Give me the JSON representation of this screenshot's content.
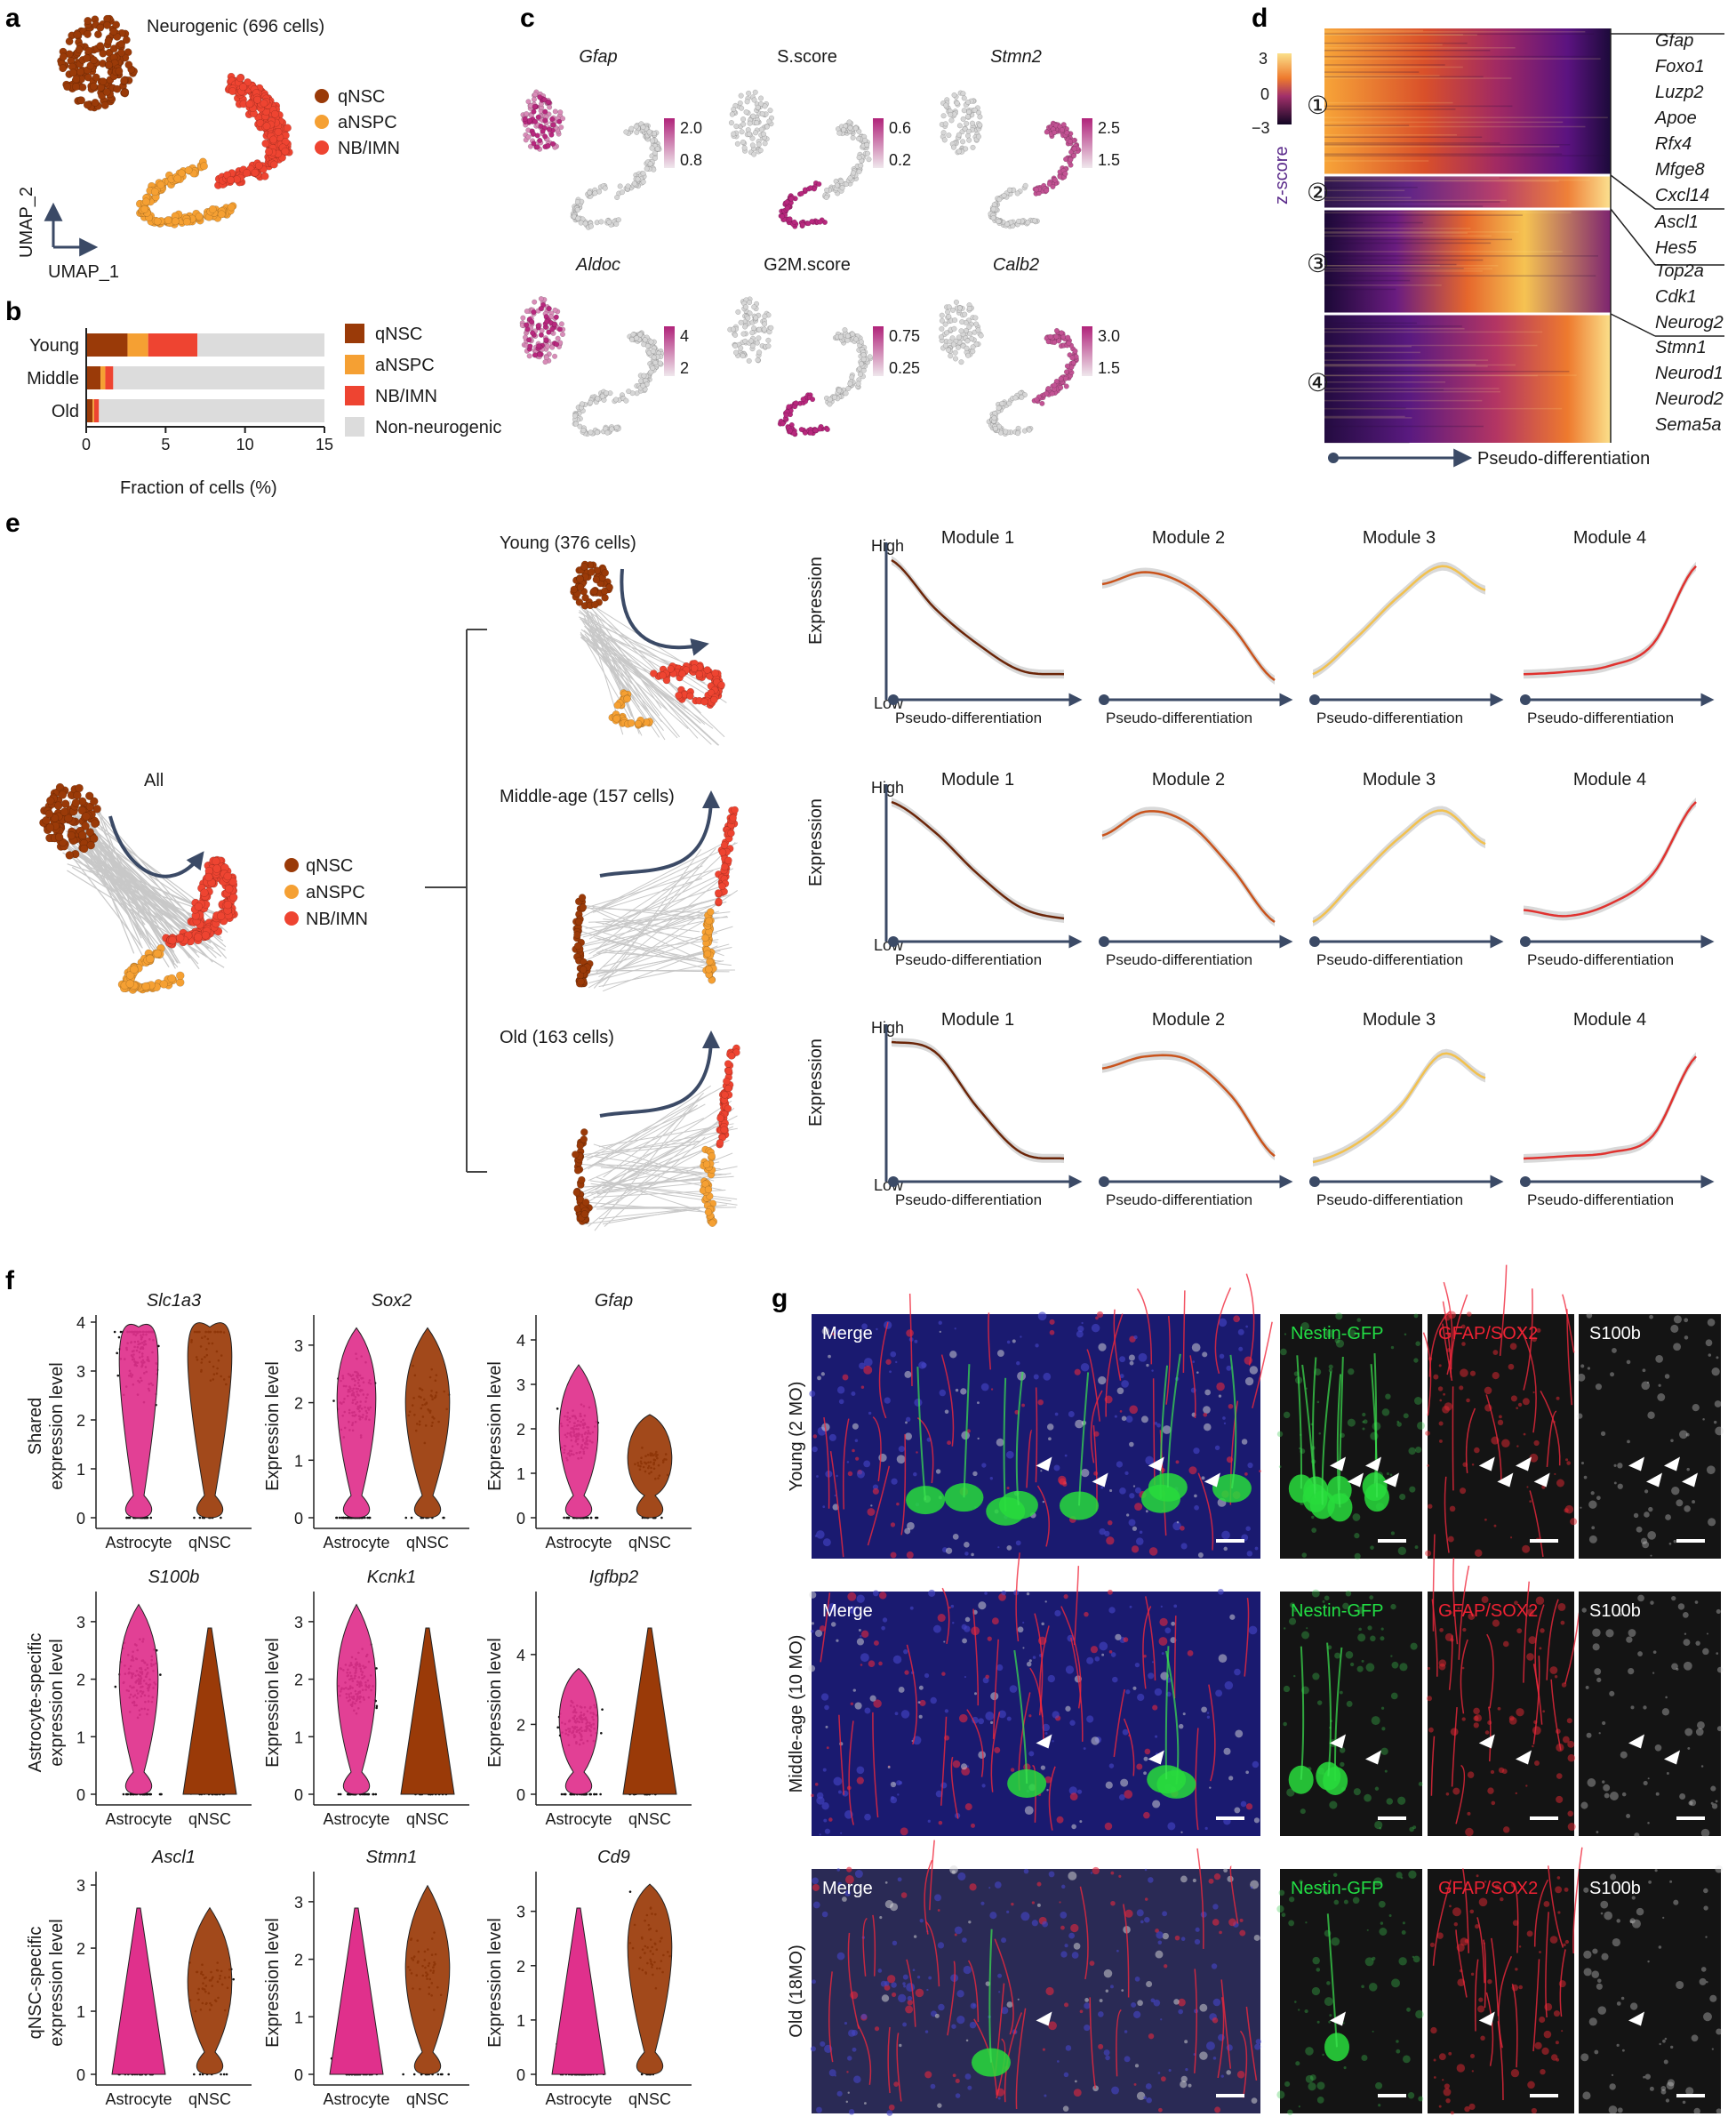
{
  "panels": {
    "a": {
      "label": "a",
      "title": "Neurogenic (696 cells)",
      "axis_x": "UMAP_1",
      "axis_y": "UMAP_2",
      "legend": [
        "qNSC",
        "aNSPC",
        "NB/IMN"
      ]
    },
    "b": {
      "label": "b",
      "xlabel": "Fraction of cells (%)",
      "ticks": [
        "0",
        "5",
        "10",
        "15"
      ],
      "legend": [
        "qNSC",
        "aNSPC",
        "NB/IMN",
        "Non-neurogenic"
      ]
    },
    "c": {
      "label": "c",
      "maps": [
        {
          "title": "Gfap",
          "italic": true,
          "scale_hi": "2.0",
          "scale_lo": "0.8"
        },
        {
          "title": "S.score",
          "italic": false,
          "scale_hi": "0.6",
          "scale_lo": "0.2"
        },
        {
          "title": "Stmn2",
          "italic": true,
          "scale_hi": "2.5",
          "scale_lo": "1.5"
        },
        {
          "title": "Aldoc",
          "italic": true,
          "scale_hi": "4",
          "scale_lo": "2"
        },
        {
          "title": "G2M.score",
          "italic": false,
          "scale_hi": "0.75",
          "scale_lo": "0.25"
        },
        {
          "title": "Calb2",
          "italic": true,
          "scale_hi": "3.0",
          "scale_lo": "1.5"
        }
      ]
    },
    "d": {
      "label": "d",
      "scale_title": "z-score",
      "scale_ticks": [
        "3",
        "0",
        "−3"
      ],
      "clusters": [
        "①",
        "②",
        "③",
        "④"
      ],
      "genes": [
        "Gfap",
        "Foxo1",
        "Luzp2",
        "Apoe",
        "Rfx4",
        "Mfge8",
        "Cxcl14",
        "Ascl1",
        "Hes5",
        "Top2a",
        "Cdk1",
        "Neurog2",
        "Stmn1",
        "Neurod1",
        "Neurod2",
        "Sema5a"
      ],
      "axis": "Pseudo-differentiation"
    },
    "e": {
      "label": "e",
      "all_title": "All",
      "legend": [
        "qNSC",
        "aNSPC",
        "NB/IMN"
      ],
      "rows": [
        {
          "title": "Young (376 cells)"
        },
        {
          "title": "Middle-age (157 cells)"
        },
        {
          "title": "Old (163 cells)"
        }
      ],
      "modules": [
        "Module 1",
        "Module 2",
        "Module 3",
        "Module 4"
      ],
      "ylabel": "Expression",
      "high": "High",
      "low": "Low",
      "xlabel": "Pseudo-differentiation"
    },
    "f": {
      "label": "f",
      "genes": [
        "Slc1a3",
        "Sox2",
        "Gfap",
        "S100b",
        "Kcnk1",
        "Igfbp2",
        "Ascl1",
        "Stmn1",
        "Cd9"
      ],
      "row_ylabels": [
        [
          "Shared",
          "expression level"
        ],
        [
          "Astrocyte-specific",
          "expression level"
        ],
        [
          "qNSC-specific",
          "expression level"
        ]
      ],
      "ylabel": "Expression level",
      "groups": [
        "Astrocyte",
        "qNSC"
      ]
    },
    "g": {
      "label": "g",
      "rows": [
        "Young (2 MO)",
        "Middle-age (10 MO)",
        "Old (18MO)"
      ],
      "channels": [
        "Merge",
        "Nestin-GFP",
        "GFAP/SOX2",
        "S100b"
      ]
    }
  },
  "colors": {
    "qNSC": "#9a3a08",
    "aNSPC": "#f5a033",
    "NB_IMN": "#ee4431",
    "non_neurogenic": "#dcdcdc",
    "astro_violin": "#e0308c",
    "module1": "#6b2508",
    "module2": "#c9531c",
    "module3": "#f2c14e",
    "module4": "#e0322f"
  },
  "chart_data": [
    {
      "type": "bar",
      "panel": "b",
      "orientation": "horizontal",
      "stacked": true,
      "categories": [
        "Young",
        "Middle",
        "Old"
      ],
      "series": [
        {
          "name": "qNSC",
          "values": [
            2.6,
            0.9,
            0.4
          ]
        },
        {
          "name": "aNSPC",
          "values": [
            1.3,
            0.3,
            0.1
          ]
        },
        {
          "name": "NB/IMN",
          "values": [
            3.1,
            0.5,
            0.3
          ]
        },
        {
          "name": "Non-neurogenic",
          "values": [
            8.0,
            13.3,
            14.2
          ]
        }
      ],
      "xlabel": "Fraction of cells (%)",
      "xlim": [
        0,
        15
      ]
    },
    {
      "type": "line",
      "panel": "e",
      "xlabel": "Pseudo-differentiation",
      "ylabel": "Expression",
      "x": [
        0,
        0.25,
        0.5,
        0.75,
        1.0
      ],
      "rows": [
        {
          "group": "Young (376 cells)",
          "series": [
            {
              "name": "Module 1",
              "values": [
                1.0,
                0.6,
                0.3,
                0.08,
                0.05
              ]
            },
            {
              "name": "Module 2",
              "values": [
                0.8,
                0.9,
                0.78,
                0.45,
                0.0
              ]
            },
            {
              "name": "Module 3",
              "values": [
                0.05,
                0.35,
                0.7,
                0.95,
                0.75
              ]
            },
            {
              "name": "Module 4",
              "values": [
                0.05,
                0.07,
                0.12,
                0.3,
                0.95
              ]
            }
          ]
        },
        {
          "group": "Middle-age (157 cells)",
          "series": [
            {
              "name": "Module 1",
              "values": [
                1.0,
                0.75,
                0.4,
                0.12,
                0.03
              ]
            },
            {
              "name": "Module 2",
              "values": [
                0.72,
                0.92,
                0.82,
                0.45,
                0.0
              ]
            },
            {
              "name": "Module 3",
              "values": [
                0.0,
                0.35,
                0.7,
                0.93,
                0.65
              ]
            },
            {
              "name": "Module 4",
              "values": [
                0.1,
                0.05,
                0.15,
                0.4,
                1.0
              ]
            }
          ]
        },
        {
          "group": "Old (163 cells)",
          "series": [
            {
              "name": "Module 1",
              "values": [
                1.0,
                0.92,
                0.45,
                0.08,
                0.03
              ]
            },
            {
              "name": "Module 2",
              "values": [
                0.78,
                0.88,
                0.85,
                0.55,
                0.05
              ]
            },
            {
              "name": "Module 3",
              "values": [
                0.0,
                0.15,
                0.45,
                0.9,
                0.7
              ]
            },
            {
              "name": "Module 4",
              "values": [
                0.03,
                0.05,
                0.08,
                0.22,
                0.88
              ]
            }
          ]
        }
      ]
    },
    {
      "type": "violin",
      "panel": "f",
      "groups": [
        "Astrocyte",
        "qNSC"
      ],
      "genes": [
        {
          "gene": "Slc1a3",
          "ylim": [
            0,
            4
          ],
          "ticks": [
            0,
            1,
            2,
            3,
            4
          ],
          "medians": [
            3.5,
            3.6
          ]
        },
        {
          "gene": "Sox2",
          "ylim": [
            0,
            3.4
          ],
          "ticks": [
            0,
            1,
            2,
            3
          ],
          "medians": [
            2.1,
            2.0
          ]
        },
        {
          "gene": "Gfap",
          "ylim": [
            0,
            4.4
          ],
          "ticks": [
            0,
            1,
            2,
            3,
            4
          ],
          "medians": [
            1.9,
            1.2
          ]
        },
        {
          "gene": "S100b",
          "ylim": [
            0,
            3.4
          ],
          "ticks": [
            0,
            1,
            2,
            3
          ],
          "medians": [
            2.0,
            0.0
          ]
        },
        {
          "gene": "Kcnk1",
          "ylim": [
            0,
            3.4
          ],
          "ticks": [
            0,
            1,
            2,
            3
          ],
          "medians": [
            1.9,
            0.0
          ]
        },
        {
          "gene": "Igfbp2",
          "ylim": [
            0,
            5.6
          ],
          "ticks": [
            0,
            2,
            4
          ],
          "medians": [
            2.0,
            0.0
          ]
        },
        {
          "gene": "Ascl1",
          "ylim": [
            0,
            3.1
          ],
          "ticks": [
            0,
            1,
            2,
            3
          ],
          "medians": [
            0.0,
            1.4
          ]
        },
        {
          "gene": "Stmn1",
          "ylim": [
            0,
            3.4
          ],
          "ticks": [
            0,
            1,
            2,
            3
          ],
          "medians": [
            0.0,
            1.8
          ]
        },
        {
          "gene": "Cd9",
          "ylim": [
            0,
            3.6
          ],
          "ticks": [
            0,
            1,
            2,
            3
          ],
          "medians": [
            0.0,
            2.4
          ]
        }
      ]
    }
  ]
}
